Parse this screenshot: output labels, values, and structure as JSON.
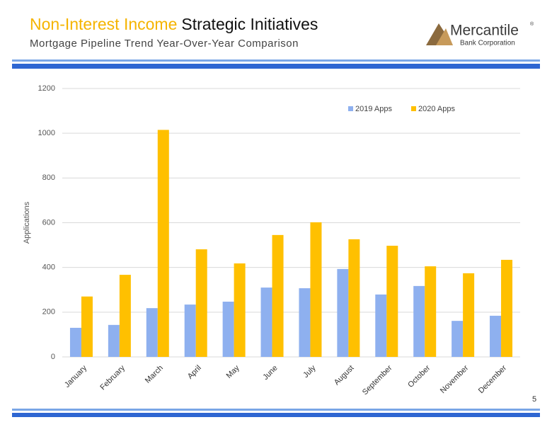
{
  "header": {
    "title_highlight": "Non-Interest Income",
    "title": "Strategic Initiatives",
    "subtitle": "Mortgage Pipeline Trend Year-Over-Year Comparison",
    "logo_name": "Mercantile",
    "logo_mark": "®",
    "logo_sub": "Bank Corporation"
  },
  "page_number": 5,
  "chart_data": {
    "type": "bar",
    "y_label": "Applications",
    "categories": [
      "January",
      "February",
      "March",
      "April",
      "May",
      "June",
      "July",
      "August",
      "September",
      "October",
      "November",
      "December"
    ],
    "series": [
      {
        "name": "2019 Apps",
        "color": "#8eb0ef",
        "values": [
          130,
          143,
          218,
          234,
          247,
          310,
          307,
          393,
          279,
          317,
          161,
          184
        ]
      },
      {
        "name": "2020 Apps",
        "color": "#ffc000",
        "values": [
          270,
          367,
          1015,
          481,
          418,
          545,
          602,
          526,
          497,
          405,
          374,
          434
        ]
      }
    ],
    "ylim": [
      0,
      1200
    ],
    "yticks": [
      0,
      200,
      400,
      600,
      800,
      1000,
      1200
    ],
    "grid": true,
    "legend": "top-right"
  }
}
